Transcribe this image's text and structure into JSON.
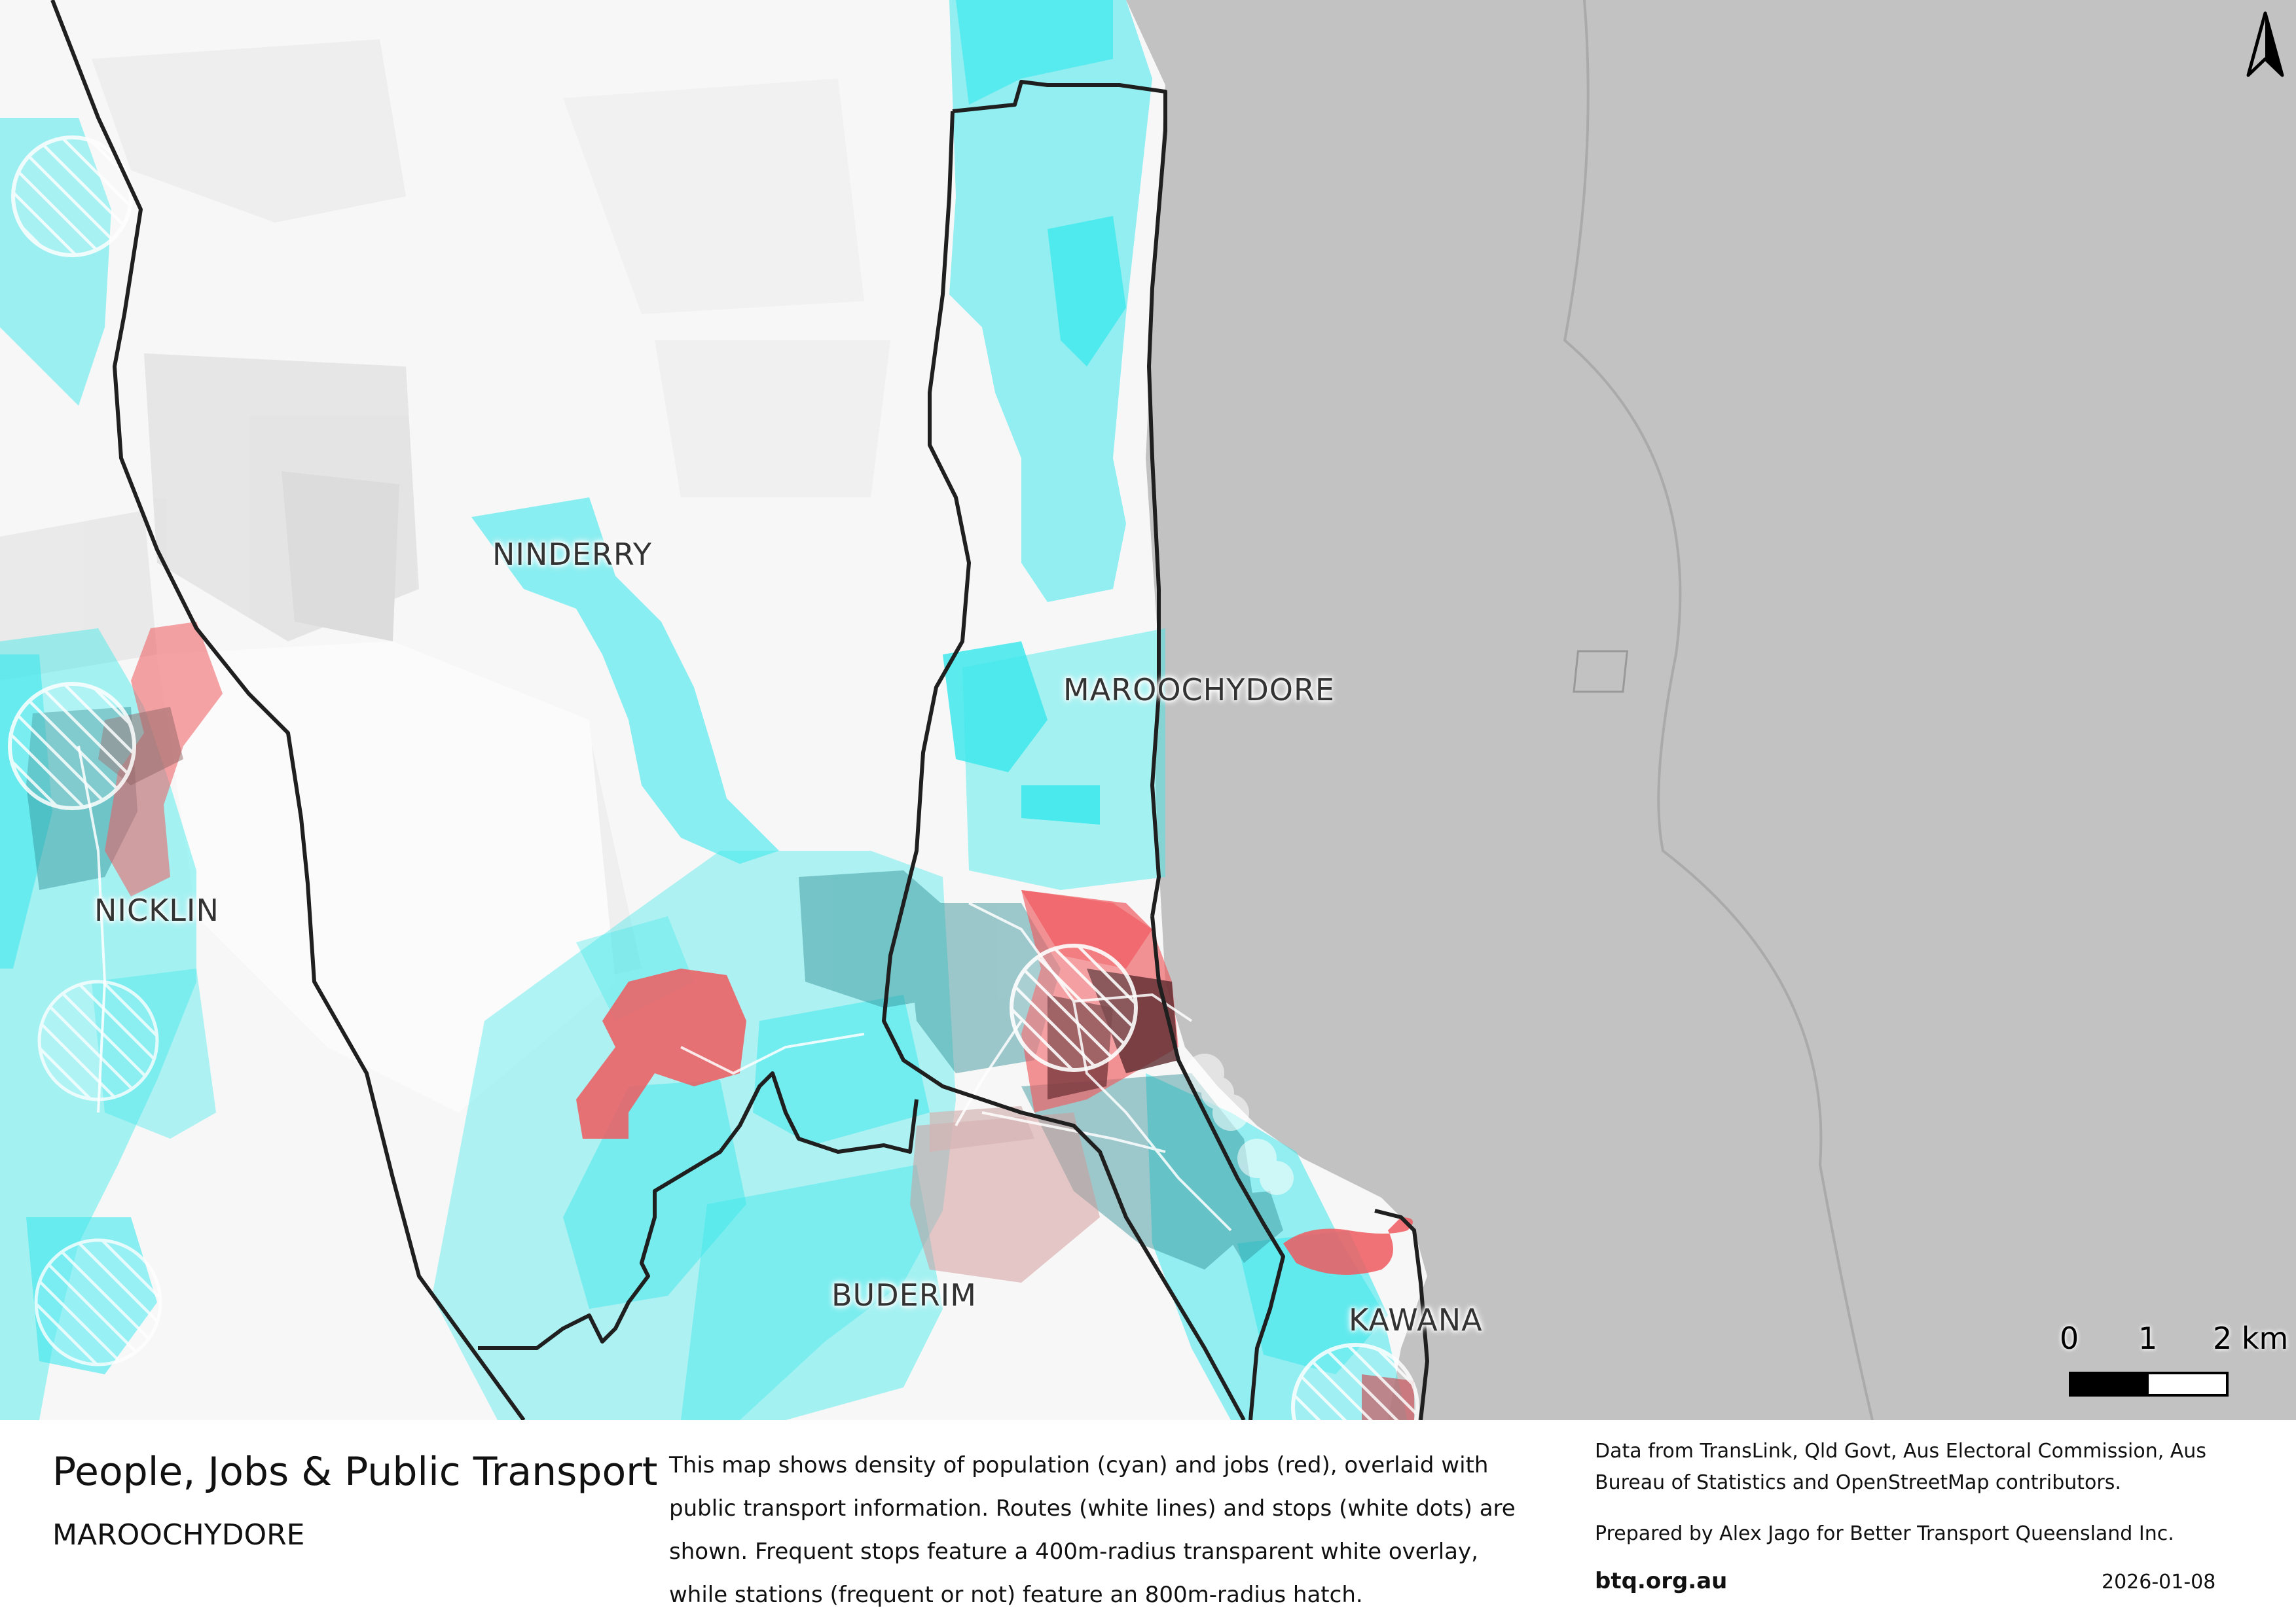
{
  "map": {
    "place_labels": {
      "ninderry": "NINDERRY",
      "maroochydore": "MAROOCHYDORE",
      "nicklin": "NICKLIN",
      "buderim": "BUDERIM",
      "kawana": "KAWANA"
    },
    "legend_colors": {
      "population": "#3fe8ec",
      "jobs": "#f05a5f",
      "ocean": "#c2c2c2",
      "boundary": "#1f1f1f"
    },
    "scale_bar": {
      "tick_0": "0",
      "tick_1": "1",
      "tick_2": "2 km"
    },
    "north_arrow": "north-arrow-icon"
  },
  "footer": {
    "title": "People, Jobs & Public Transport",
    "subtitle": "MAROOCHYDORE",
    "description": "This map shows density of population (cyan) and jobs (red), overlaid with public transport information. Routes (white lines) and stops (white dots) are shown. Frequent stops feature a 400m-radius transparent white overlay, while stations (frequent or not) feature an 800m-radius hatch.",
    "credits": "Data from TransLink,  Qld Govt,  Aus Electoral Commission, Aus Bureau of Statistics and OpenStreetMap contributors.",
    "prepared_by": "Prepared by Alex Jago for Better Transport Queensland Inc.",
    "website": "btq.org.au",
    "date": "2026-01-08"
  }
}
